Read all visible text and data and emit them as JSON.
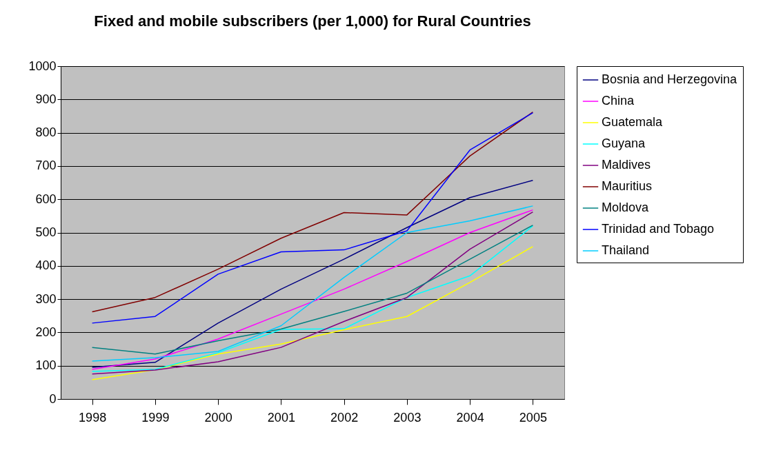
{
  "chart_data": {
    "type": "line",
    "title": "Fixed and mobile subscribers (per 1,000) for Rural Countries",
    "categories": [
      "1998",
      "1999",
      "2000",
      "2001",
      "2002",
      "2003",
      "2004",
      "2005"
    ],
    "series": [
      {
        "name": "Bosnia and Herzegovina",
        "color": "#000080",
        "values": [
          95,
          110,
          228,
          330,
          420,
          515,
          605,
          657
        ]
      },
      {
        "name": "China",
        "color": "#ff00ff",
        "values": [
          89,
          120,
          180,
          255,
          330,
          413,
          500,
          568
        ]
      },
      {
        "name": "Guatemala",
        "color": "#ffff00",
        "values": [
          58,
          88,
          135,
          165,
          208,
          248,
          350,
          458
        ]
      },
      {
        "name": "Guyana",
        "color": "#00ffff",
        "values": [
          83,
          89,
          139,
          209,
          211,
          305,
          370,
          520
        ]
      },
      {
        "name": "Maldives",
        "color": "#800080",
        "values": [
          75,
          87,
          112,
          155,
          233,
          305,
          450,
          562
        ]
      },
      {
        "name": "Mauritius",
        "color": "#800000",
        "values": [
          262,
          305,
          390,
          483,
          560,
          553,
          730,
          862
        ]
      },
      {
        "name": "Moldova",
        "color": "#008080",
        "values": [
          155,
          135,
          175,
          210,
          263,
          318,
          420,
          522
        ]
      },
      {
        "name": "Trinidad and Tobago",
        "color": "#0000ff",
        "values": [
          228,
          248,
          375,
          442,
          448,
          505,
          748,
          860
        ]
      },
      {
        "name": "Thailand",
        "color": "#00ccff",
        "values": [
          114,
          124,
          143,
          220,
          365,
          500,
          535,
          580
        ]
      }
    ],
    "ylim": [
      0,
      1000
    ],
    "yticks": [
      0,
      100,
      200,
      300,
      400,
      500,
      600,
      700,
      800,
      900,
      1000
    ],
    "grid": "y",
    "legend": "right",
    "marker": "none",
    "line_style": "solid"
  }
}
